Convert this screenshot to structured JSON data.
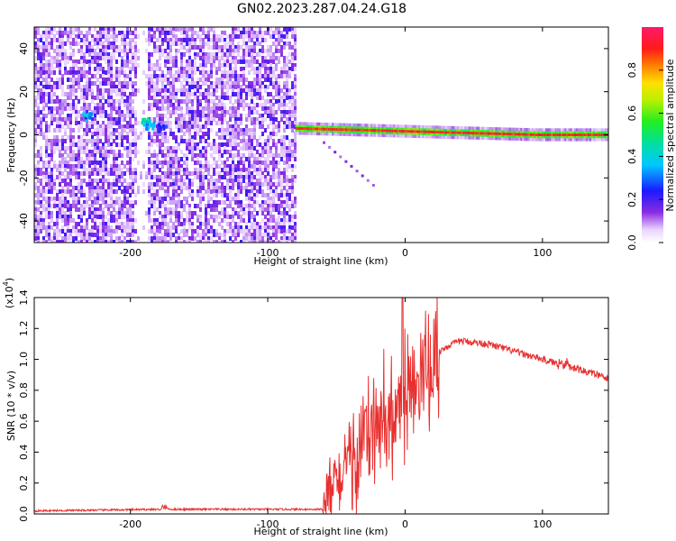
{
  "figure": {
    "title": "GN02.2023.287.04.24.G18"
  },
  "chart_data": [
    {
      "type": "heatmap",
      "title": "GN02.2023.287.04.24.G18",
      "xlabel": "Height of straight line (km)",
      "ylabel": "Frequency (Hz)",
      "xlim": [
        -270,
        148
      ],
      "ylim": [
        -50,
        50
      ],
      "xticks": [
        -200,
        -100,
        0,
        100
      ],
      "yticks": [
        -40,
        -20,
        0,
        20,
        40
      ],
      "noise_region_x": [
        -270,
        -80
      ],
      "signal_line": {
        "x_start": -80,
        "x_end": 148,
        "frequency_start": 3,
        "frequency_end": 0,
        "amplitude": 0.85
      },
      "bright_spots": [
        {
          "x": -232,
          "y": 9,
          "amplitude": 0.4
        },
        {
          "x": -190,
          "y": 7,
          "amplitude": 0.5
        },
        {
          "x": -186,
          "y": 5,
          "amplitude": 0.45
        },
        {
          "x": -178,
          "y": 4,
          "amplitude": 0.3
        }
      ],
      "colorbar": {
        "label": "Normalized spectral amplitude",
        "range": [
          0,
          1
        ],
        "ticks": [
          "0.0",
          "0.2",
          "0.4",
          "0.6",
          "0.8"
        ],
        "ticks_values": [
          0,
          0.2,
          0.4,
          0.6,
          0.8
        ]
      }
    },
    {
      "type": "line",
      "xlabel": "Height of straight line (km)",
      "ylabel": "SNR (10 * v/v)",
      "yscale_label": "(x10",
      "yscale_exp": "4",
      "xlim": [
        -270,
        148
      ],
      "ylim": [
        0,
        1.4
      ],
      "xticks": [
        -200,
        -100,
        0,
        100
      ],
      "yticks": [
        "0.0",
        "0.2",
        "0.4",
        "0.6",
        "0.8",
        "1.0",
        "1.2",
        "1.4"
      ],
      "yticks_values": [
        0,
        0.2,
        0.4,
        0.6,
        0.8,
        1.0,
        1.2,
        1.4
      ],
      "series": [
        {
          "color": "#e8302f",
          "x": [
            -270,
            -175,
            -60,
            -50,
            -40,
            -30,
            -20,
            -10,
            -2,
            0,
            10,
            20,
            25,
            30,
            40,
            60,
            80,
            100,
            120,
            140,
            148
          ],
          "y": [
            0.02,
            0.03,
            0.03,
            0.22,
            0.3,
            0.45,
            0.55,
            0.6,
            0.68,
            0.7,
            0.82,
            0.95,
            1.05,
            1.08,
            1.12,
            1.1,
            1.05,
            1.0,
            0.95,
            0.9,
            0.87
          ]
        }
      ]
    }
  ]
}
